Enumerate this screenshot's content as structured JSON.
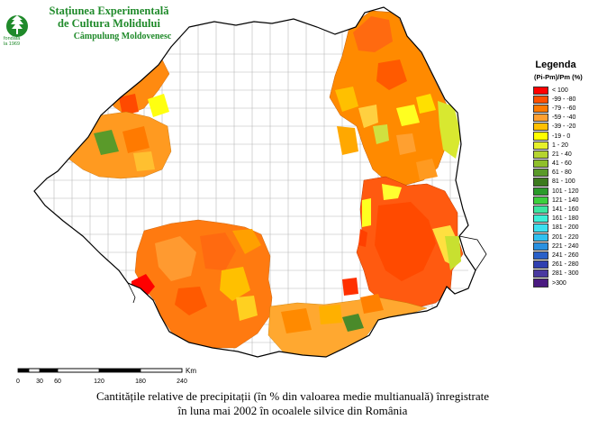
{
  "header": {
    "line1": "Stațiunea Experimentală",
    "line2": "de Cultura Molidului",
    "line3": "Câmpulung Moldovenesc",
    "logo_sub1": "fondată",
    "logo_sub2": "la 1969"
  },
  "legend": {
    "title": "Legenda",
    "subtitle": "(Pi-Pm)/Pm (%)",
    "items": [
      {
        "label": "< 100",
        "color": "#ff0000"
      },
      {
        "label": "-99 - -80",
        "color": "#ff4f00"
      },
      {
        "label": "-79 - -60",
        "color": "#ff7a00"
      },
      {
        "label": "-59 - -40",
        "color": "#ffa030"
      },
      {
        "label": "-39 - -20",
        "color": "#ffc000"
      },
      {
        "label": "-19 - 0",
        "color": "#ffff00"
      },
      {
        "label": "1 - 20",
        "color": "#e6f02a"
      },
      {
        "label": "21 - 40",
        "color": "#b5d430"
      },
      {
        "label": "41 - 60",
        "color": "#8fbf2a"
      },
      {
        "label": "61 - 80",
        "color": "#5a9a2a"
      },
      {
        "label": "81 - 100",
        "color": "#3c7a1e"
      },
      {
        "label": "101 - 120",
        "color": "#2a9a2a"
      },
      {
        "label": "121 - 140",
        "color": "#3ccf3c"
      },
      {
        "label": "141 - 160",
        "color": "#3ce6a0"
      },
      {
        "label": "161 - 180",
        "color": "#3cf0d8"
      },
      {
        "label": "181 - 200",
        "color": "#3ce0f0"
      },
      {
        "label": "201 - 220",
        "color": "#30c0f0"
      },
      {
        "label": "221 - 240",
        "color": "#2a90e0"
      },
      {
        "label": "241 - 260",
        "color": "#2a60c8"
      },
      {
        "label": "261 - 280",
        "color": "#3040b0"
      },
      {
        "label": "281 - 300",
        "color": "#4a3aa0"
      },
      {
        "label": ">300",
        "color": "#4a1a80"
      }
    ]
  },
  "scale": {
    "unit": "Km",
    "ticks": [
      "0",
      "30",
      "60",
      "120",
      "180",
      "240"
    ]
  },
  "caption": {
    "line1": "Cantitățile relative de precipitații (în % din valoarea medie multianuală) înregistrate",
    "line2": "în luna mai 2002 în ocoalele silvice din România"
  }
}
